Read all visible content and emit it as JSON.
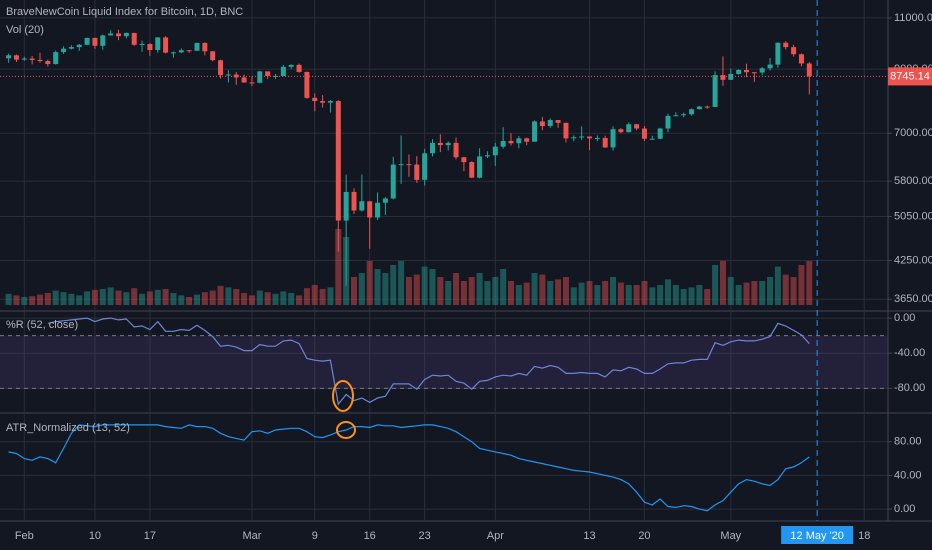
{
  "chart_data": [
    {
      "type": "candlestick",
      "title": "BraveNewCoin Liquid Index for Bitcoin, 1D, BNC",
      "x": [
        "2020-01-30",
        "2020-01-31",
        "2020-02-01",
        "2020-02-02",
        "2020-02-03",
        "2020-02-04",
        "2020-02-05",
        "2020-02-06",
        "2020-02-07",
        "2020-02-08",
        "2020-02-09",
        "2020-02-10",
        "2020-02-11",
        "2020-02-12",
        "2020-02-13",
        "2020-02-14",
        "2020-02-15",
        "2020-02-16",
        "2020-02-17",
        "2020-02-18",
        "2020-02-19",
        "2020-02-20",
        "2020-02-21",
        "2020-02-22",
        "2020-02-23",
        "2020-02-24",
        "2020-02-25",
        "2020-02-26",
        "2020-02-27",
        "2020-02-28",
        "2020-02-29",
        "2020-03-01",
        "2020-03-02",
        "2020-03-03",
        "2020-03-04",
        "2020-03-05",
        "2020-03-06",
        "2020-03-07",
        "2020-03-08",
        "2020-03-09",
        "2020-03-10",
        "2020-03-11",
        "2020-03-12",
        "2020-03-13",
        "2020-03-14",
        "2020-03-15",
        "2020-03-16",
        "2020-03-17",
        "2020-03-18",
        "2020-03-19",
        "2020-03-20",
        "2020-03-21",
        "2020-03-22",
        "2020-03-23",
        "2020-03-24",
        "2020-03-25",
        "2020-03-26",
        "2020-03-27",
        "2020-03-28",
        "2020-03-29",
        "2020-03-30",
        "2020-03-31",
        "2020-04-01",
        "2020-04-02",
        "2020-04-03",
        "2020-04-04",
        "2020-04-05",
        "2020-04-06",
        "2020-04-07",
        "2020-04-08",
        "2020-04-09",
        "2020-04-10",
        "2020-04-11",
        "2020-04-12",
        "2020-04-13",
        "2020-04-14",
        "2020-04-15",
        "2020-04-16",
        "2020-04-17",
        "2020-04-18",
        "2020-04-19",
        "2020-04-20",
        "2020-04-21",
        "2020-04-22",
        "2020-04-23",
        "2020-04-24",
        "2020-04-25",
        "2020-04-26",
        "2020-04-27",
        "2020-04-28",
        "2020-04-29",
        "2020-04-30",
        "2020-05-01",
        "2020-05-02",
        "2020-05-03",
        "2020-05-04",
        "2020-05-05",
        "2020-05-06",
        "2020-05-07",
        "2020-05-08",
        "2020-05-09",
        "2020-05-10",
        "2020-05-11"
      ],
      "open": [
        9390,
        9500,
        9340,
        9380,
        9330,
        9290,
        9180,
        9620,
        9750,
        9810,
        9900,
        10170,
        9860,
        10270,
        10350,
        10240,
        10370,
        9900,
        9930,
        9700,
        10190,
        9600,
        9610,
        9690,
        9670,
        9970,
        9650,
        9320,
        8790,
        8810,
        8710,
        8540,
        8530,
        8920,
        8760,
        8760,
        9080,
        9150,
        8900,
        8040,
        7940,
        7890,
        7940,
        4970,
        5560,
        5170,
        5360,
        5030,
        5330,
        5420,
        6190,
        6200,
        6190,
        5830,
        6470,
        6740,
        6680,
        6740,
        6370,
        6250,
        5880,
        6390,
        6420,
        6640,
        6790,
        6730,
        6860,
        6770,
        7330,
        7200,
        7370,
        7290,
        6860,
        6890,
        6910,
        6860,
        6870,
        6620,
        7110,
        7030,
        7250,
        7130,
        6850,
        6850,
        7130,
        7490,
        7510,
        7540,
        7690,
        7770,
        7760,
        8790,
        8630,
        8830,
        8970,
        8890,
        8880,
        9030,
        9160,
        9980,
        9810,
        9540,
        9200
      ],
      "high": [
        9560,
        9530,
        9450,
        9470,
        9600,
        9340,
        9680,
        9840,
        9880,
        9930,
        10180,
        10180,
        10300,
        10480,
        10500,
        10390,
        10380,
        10060,
        9960,
        10200,
        10240,
        9640,
        9760,
        9700,
        9990,
        10000,
        9660,
        9340,
        8960,
        8900,
        8810,
        8740,
        8940,
        8920,
        8830,
        9150,
        9170,
        9200,
        8910,
        8180,
        8130,
        7970,
        7970,
        5950,
        5640,
        5950,
        5370,
        5550,
        5450,
        6380,
        6940,
        6440,
        6400,
        6580,
        6840,
        6970,
        6780,
        6880,
        6380,
        6270,
        6600,
        6520,
        6740,
        7170,
        7000,
        6920,
        6880,
        7360,
        7460,
        7420,
        7370,
        7290,
        6940,
        7190,
        6910,
        6940,
        6930,
        7190,
        7140,
        7300,
        7260,
        7200,
        6930,
        7150,
        7560,
        7600,
        7590,
        7710,
        7790,
        7800,
        8920,
        9460,
        9020,
        9000,
        9190,
        8900,
        9070,
        9400,
        9990,
        10040,
        9900,
        9570,
        9250
      ],
      "low": [
        9230,
        9250,
        9300,
        9170,
        9230,
        9090,
        9160,
        9550,
        9720,
        9670,
        9880,
        9740,
        9710,
        10260,
        10080,
        10150,
        9860,
        9630,
        9480,
        9600,
        9570,
        9410,
        9580,
        9590,
        9660,
        9500,
        9280,
        8670,
        8540,
        8460,
        8530,
        8420,
        8510,
        8660,
        8660,
        8750,
        9010,
        8870,
        8010,
        7630,
        7740,
        7590,
        4400,
        3850,
        5100,
        5150,
        4450,
        4980,
        5080,
        5400,
        5740,
        5900,
        5760,
        5700,
        6390,
        6500,
        6540,
        6320,
        6030,
        5870,
        5860,
        6350,
        6160,
        6590,
        6670,
        6600,
        6680,
        6770,
        7080,
        7150,
        7150,
        6750,
        6780,
        6820,
        6550,
        6780,
        6610,
        6540,
        7000,
        7020,
        7080,
        6790,
        6820,
        6840,
        7030,
        7480,
        7450,
        7500,
        7680,
        7700,
        7760,
        8430,
        8630,
        8800,
        8720,
        8560,
        8790,
        8950,
        9050,
        9720,
        9450,
        9100,
        8150
      ],
      "close": [
        9500,
        9340,
        9380,
        9330,
        9290,
        9180,
        9620,
        9750,
        9810,
        9900,
        10170,
        9860,
        10270,
        10350,
        10240,
        10370,
        9900,
        9930,
        9700,
        10190,
        9600,
        9610,
        9690,
        9670,
        9970,
        9650,
        9320,
        8790,
        8810,
        8710,
        8540,
        8530,
        8920,
        8760,
        8760,
        9080,
        9150,
        8900,
        8040,
        7940,
        7890,
        7940,
        4970,
        5560,
        5170,
        5360,
        5030,
        5330,
        5420,
        6190,
        6200,
        6190,
        5830,
        6470,
        6740,
        6680,
        6740,
        6370,
        6250,
        5880,
        6390,
        6420,
        6640,
        6790,
        6730,
        6860,
        6770,
        7330,
        7200,
        7370,
        7290,
        6860,
        6890,
        6910,
        6860,
        6870,
        6620,
        7110,
        7030,
        7250,
        7130,
        6850,
        6850,
        7130,
        7490,
        7510,
        7540,
        7690,
        7770,
        7760,
        8790,
        8630,
        8830,
        8970,
        8890,
        8880,
        9030,
        9160,
        9980,
        9810,
        9540,
        9200,
        8745.14
      ],
      "up_color": "#26a69a",
      "down_color": "#ef5350",
      "volume": {
        "name": "Vol (20)",
        "values": [
          14,
          12,
          10,
          11,
          13,
          15,
          18,
          16,
          14,
          12,
          17,
          19,
          20,
          22,
          18,
          16,
          21,
          14,
          17,
          19,
          20,
          15,
          12,
          10,
          13,
          16,
          18,
          24,
          22,
          20,
          15,
          12,
          18,
          16,
          14,
          17,
          15,
          12,
          21,
          25,
          20,
          22,
          95,
          85,
          35,
          40,
          55,
          45,
          40,
          50,
          55,
          35,
          38,
          48,
          45,
          35,
          30,
          40,
          30,
          35,
          40,
          30,
          35,
          45,
          30,
          25,
          28,
          40,
          38,
          30,
          32,
          35,
          22,
          28,
          30,
          25,
          30,
          35,
          28,
          25,
          25,
          30,
          22,
          25,
          32,
          25,
          20,
          22,
          25,
          20,
          50,
          55,
          35,
          25,
          28,
          30,
          30,
          35,
          48,
          38,
          35,
          50,
          55
        ],
        "vlim": [
          0,
          100
        ]
      },
      "ylim": [
        3500,
        11800
      ],
      "log_scale": true,
      "grid": true,
      "yticks": [
        {
          "value": 3650,
          "label": "3650.00"
        },
        {
          "value": 4250,
          "label": "4250.00"
        },
        {
          "value": 5050,
          "label": "5050.00"
        },
        {
          "value": 5800,
          "label": "5800.00"
        },
        {
          "value": 7000,
          "label": "7000.00"
        },
        {
          "value": 9000,
          "label": "9000.00"
        },
        {
          "value": 11000,
          "label": "11000.00"
        }
      ],
      "xticks": [
        {
          "value": "2020-02-01",
          "label": "Feb"
        },
        {
          "value": "2020-02-10",
          "label": "10"
        },
        {
          "value": "2020-02-17",
          "label": "17"
        },
        {
          "value": "2020-03-01",
          "label": "Mar"
        },
        {
          "value": "2020-03-09",
          "label": "9"
        },
        {
          "value": "2020-03-16",
          "label": "16"
        },
        {
          "value": "2020-03-23",
          "label": "23"
        },
        {
          "value": "2020-04-01",
          "label": "Apr"
        },
        {
          "value": "2020-04-13",
          "label": "13"
        },
        {
          "value": "2020-04-20",
          "label": "20"
        },
        {
          "value": "2020-05-01",
          "label": "May"
        },
        {
          "value": "2020-05-12",
          "label": "12 May '20"
        },
        {
          "value": "2020-05-18",
          "label": "18"
        }
      ],
      "crosshair": "2020-05-12"
    },
    {
      "type": "line",
      "title": "%R (52, close)",
      "color": "#6f84d8",
      "values": [
        null,
        null,
        null,
        null,
        null,
        -6,
        -4,
        -3,
        -2,
        -1,
        0,
        -4,
        -1,
        0,
        -2,
        -1,
        -10,
        -9,
        -13,
        -4,
        -15,
        -15,
        -13,
        -14,
        -8,
        -14,
        -21,
        -32,
        -31,
        -33,
        -37,
        -37,
        -30,
        -32,
        -32,
        -26,
        -25,
        -29,
        -46,
        -48,
        -49,
        -48,
        -98,
        -87,
        -94,
        -91,
        -96,
        -91,
        -89,
        -75,
        -75,
        -75,
        -81,
        -70,
        -65,
        -66,
        -65,
        -72,
        -74,
        -81,
        -72,
        -71,
        -67,
        -65,
        -66,
        -63,
        -65,
        -55,
        -57,
        -54,
        -56,
        -63,
        -63,
        -62,
        -63,
        -63,
        -67,
        -59,
        -60,
        -56,
        -58,
        -63,
        -63,
        -58,
        -52,
        -51,
        -51,
        -48,
        -47,
        -47,
        -28,
        -31,
        -27,
        -25,
        -26,
        -26,
        -24,
        -21,
        -6,
        -9,
        -14,
        -19,
        -29
      ],
      "ylim": [
        -107,
        7
      ],
      "band": [
        -20,
        -80
      ],
      "band_color": "#7e57c2",
      "yticks": [
        {
          "value": 0,
          "label": "0.00"
        },
        {
          "value": -40,
          "label": "-40.00"
        },
        {
          "value": -80,
          "label": "-80.00"
        }
      ]
    },
    {
      "type": "line",
      "title": "ATR_Normalized (13, 52)",
      "color": "#2196f3",
      "values": [
        68,
        66,
        60,
        58,
        62,
        60,
        55,
        72,
        90,
        100,
        99,
        98,
        100,
        100,
        100,
        100,
        100,
        100,
        100,
        100,
        98,
        97,
        96,
        100,
        98,
        98,
        96,
        90,
        86,
        84,
        82,
        92,
        93,
        90,
        94,
        95,
        96,
        96,
        92,
        86,
        85,
        88,
        92,
        94,
        98,
        98,
        97,
        100,
        99,
        99,
        97,
        98,
        99,
        100,
        100,
        98,
        96,
        92,
        86,
        80,
        72,
        70,
        68,
        66,
        64,
        60,
        58,
        56,
        54,
        52,
        50,
        48,
        46,
        45,
        44,
        42,
        40,
        38,
        35,
        30,
        20,
        8,
        5,
        12,
        3,
        2,
        4,
        3,
        0,
        -2,
        5,
        10,
        20,
        30,
        35,
        33,
        30,
        28,
        35,
        48,
        50,
        55,
        62
      ],
      "ylim": [
        -13,
        113
      ],
      "yticks": [
        {
          "value": 0,
          "label": "0.00"
        },
        {
          "value": 40,
          "label": "40.00"
        },
        {
          "value": 80,
          "label": "80.00"
        }
      ]
    }
  ]
}
